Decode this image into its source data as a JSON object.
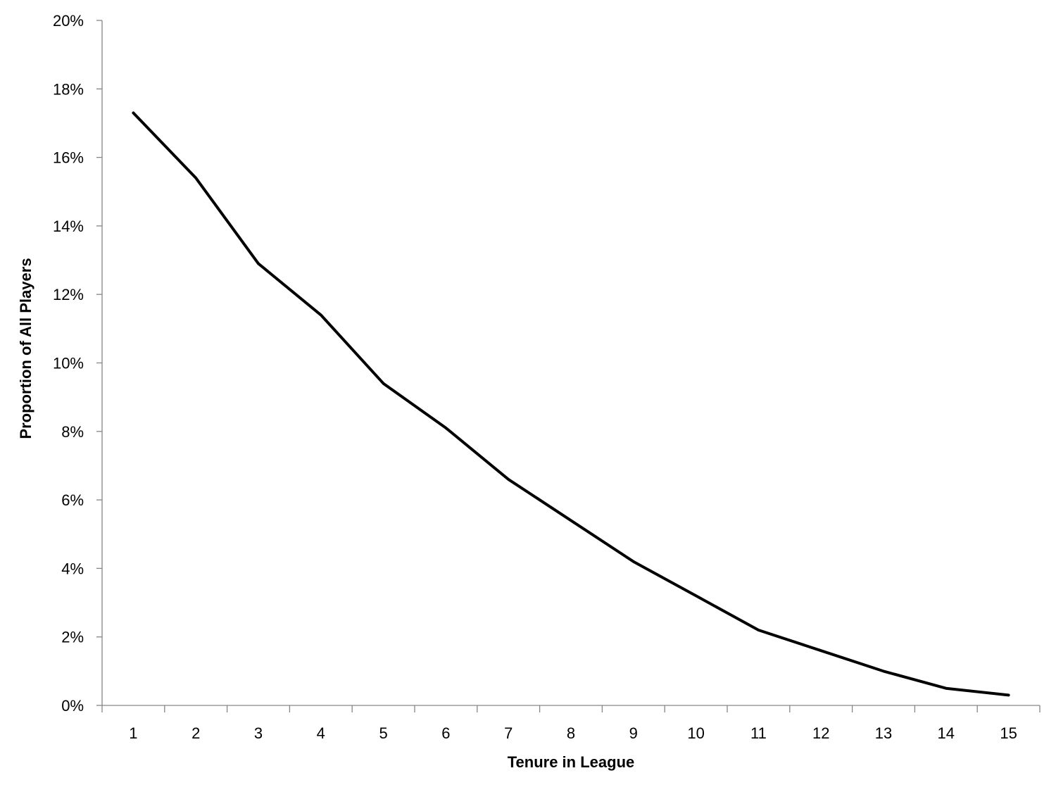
{
  "chart_data": {
    "type": "line",
    "title": "",
    "xlabel": "Tenure in League",
    "ylabel": "Proportion of All Players",
    "categories": [
      "1",
      "2",
      "3",
      "4",
      "5",
      "6",
      "7",
      "8",
      "9",
      "10",
      "11",
      "12",
      "13",
      "14",
      "15"
    ],
    "series": [
      {
        "name": "Proportion of All Players",
        "color": "#000000",
        "values": [
          17.3,
          15.4,
          12.9,
          11.4,
          9.4,
          8.1,
          6.6,
          5.4,
          4.2,
          3.2,
          2.2,
          1.6,
          1.0,
          0.5,
          0.3
        ]
      }
    ],
    "yticks": [
      "0%",
      "2%",
      "4%",
      "6%",
      "8%",
      "10%",
      "12%",
      "14%",
      "16%",
      "18%",
      "20%"
    ],
    "ylim": [
      0,
      20
    ],
    "y_unit": "%",
    "grid": false,
    "legend": "none",
    "axis_color": "#868686"
  }
}
